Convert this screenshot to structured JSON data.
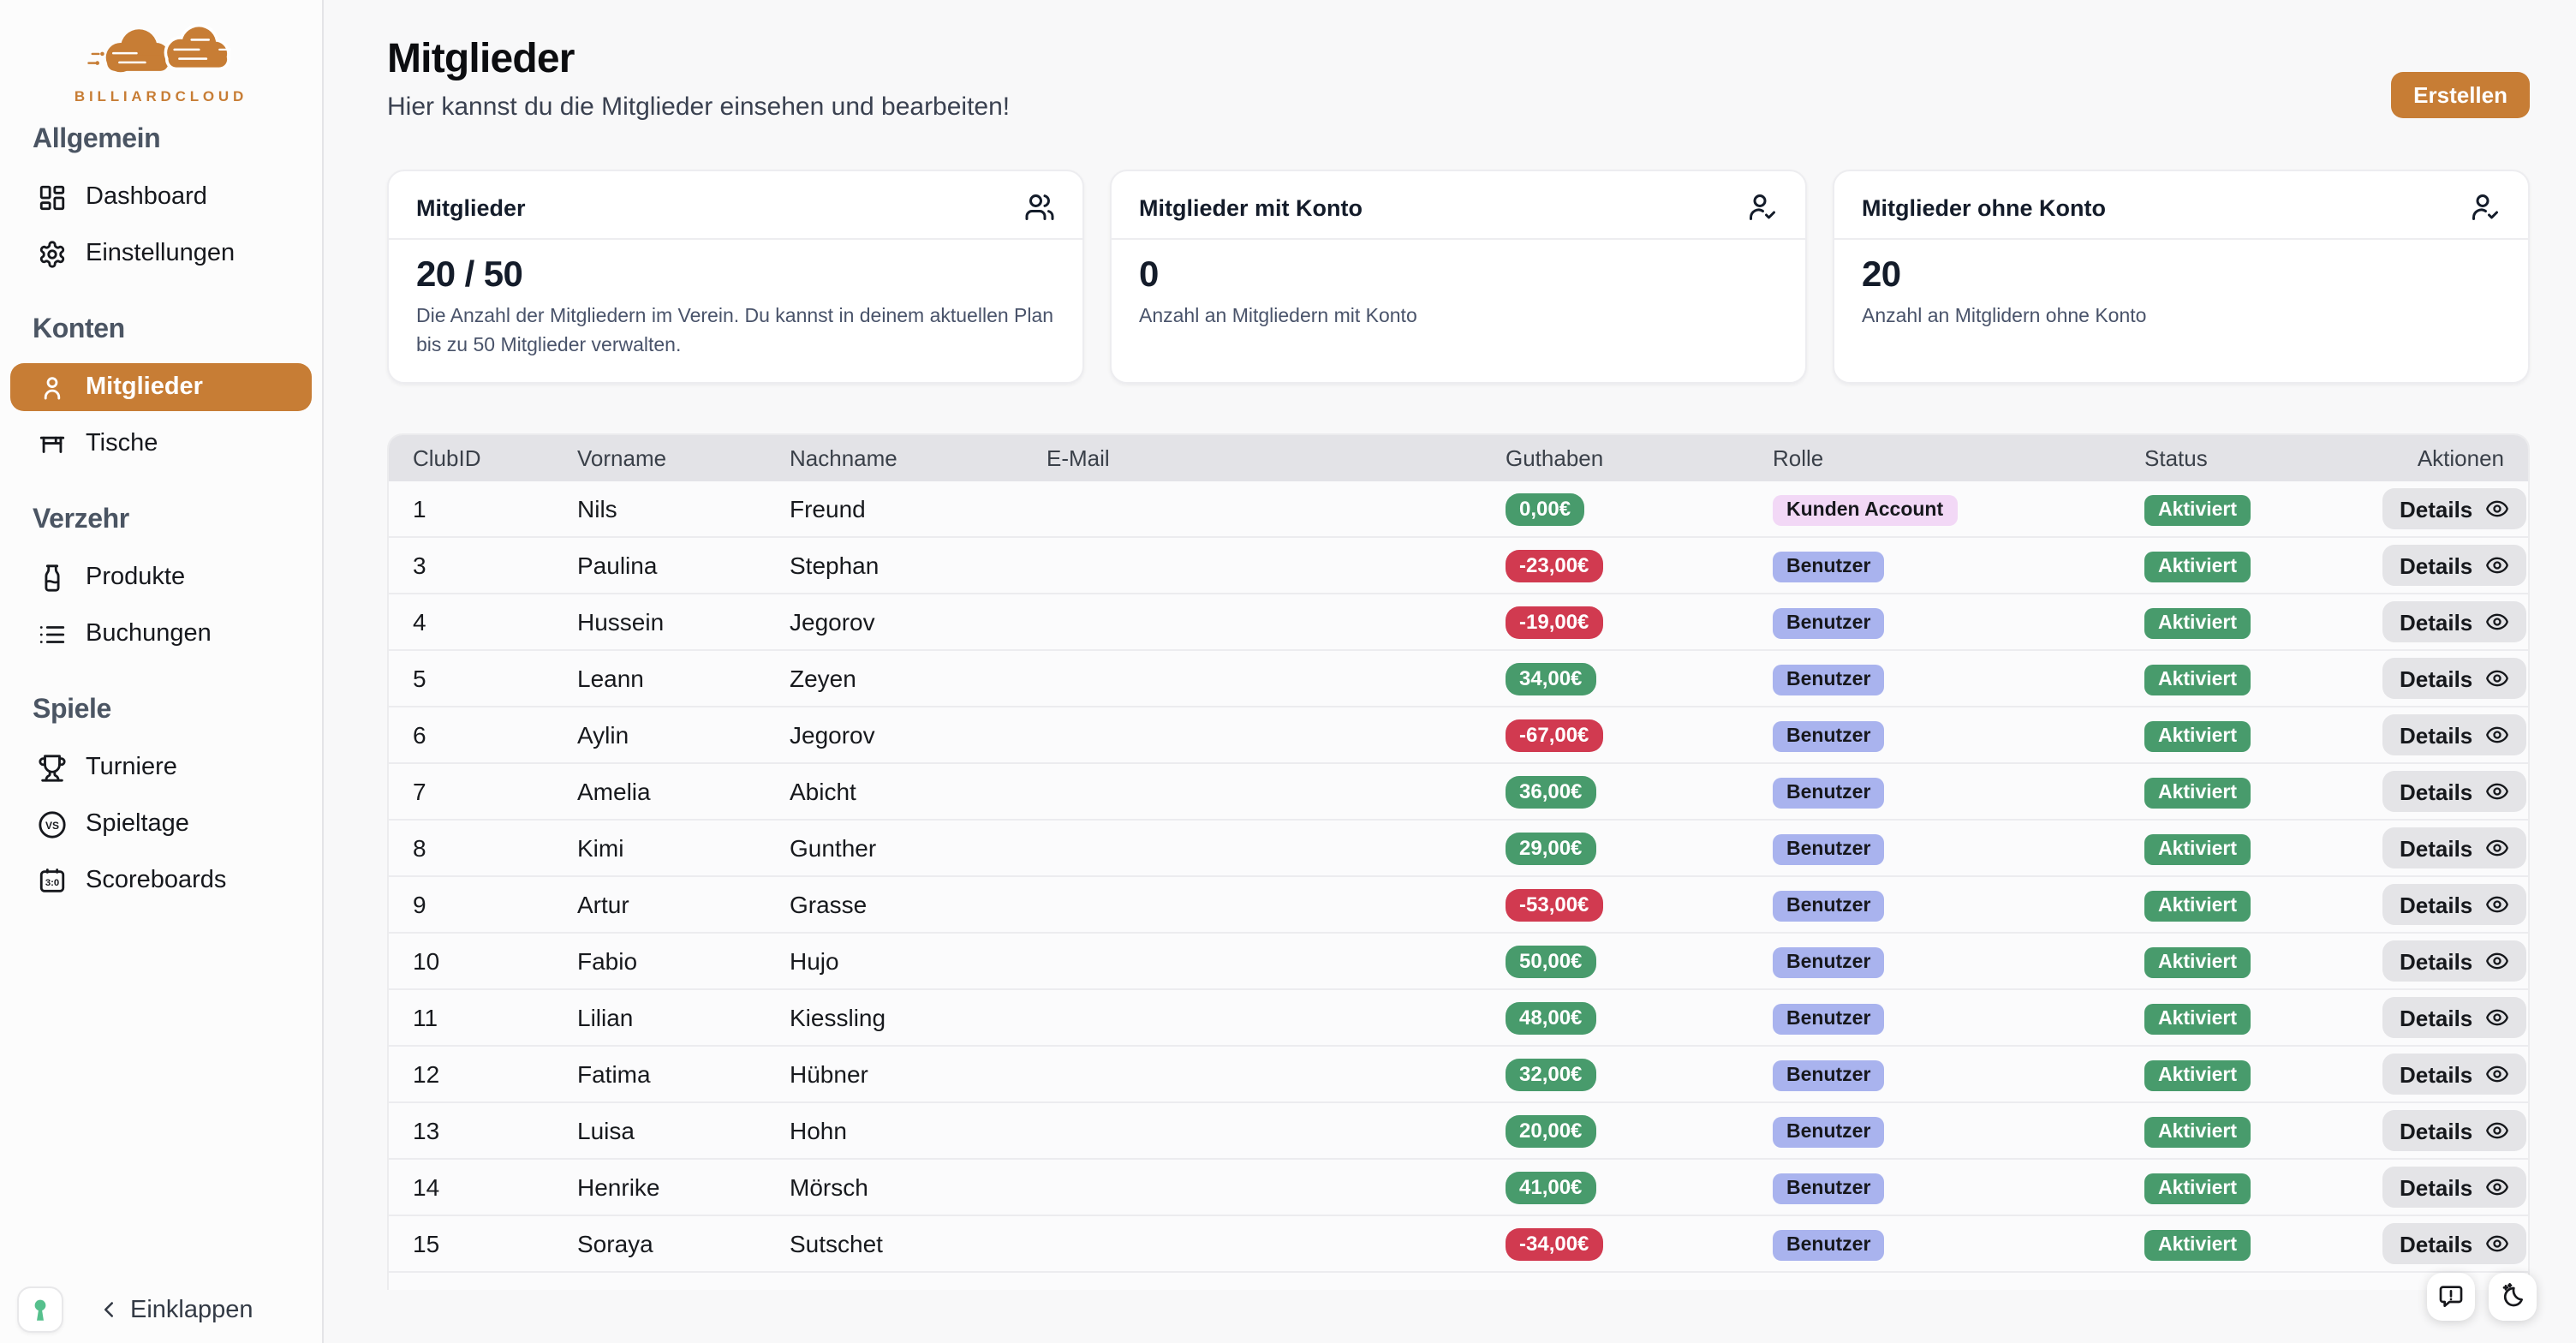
{
  "brand": {
    "name": "BILLIARDCLOUD"
  },
  "colors": {
    "accent": "#C77D35",
    "positive": "#489B6C",
    "negative": "#D13A50",
    "role_kunde": "#F2D8F6",
    "role_benutzer": "#A9B3EE",
    "status_active": "#489B6C"
  },
  "sidebar": {
    "sections": [
      {
        "label": "Allgemein",
        "items": [
          {
            "label": "Dashboard",
            "icon": "dashboard",
            "active": false
          },
          {
            "label": "Einstellungen",
            "icon": "gear",
            "active": false
          }
        ]
      },
      {
        "label": "Konten",
        "items": [
          {
            "label": "Mitglieder",
            "icon": "person",
            "active": true
          },
          {
            "label": "Tische",
            "icon": "table",
            "active": false
          }
        ]
      },
      {
        "label": "Verzehr",
        "items": [
          {
            "label": "Produkte",
            "icon": "bottle",
            "active": false
          },
          {
            "label": "Buchungen",
            "icon": "list",
            "active": false
          }
        ]
      },
      {
        "label": "Spiele",
        "items": [
          {
            "label": "Turniere",
            "icon": "trophy",
            "active": false
          },
          {
            "label": "Spieltage",
            "icon": "vs",
            "active": false
          },
          {
            "label": "Scoreboards",
            "icon": "scoreboard",
            "active": false
          }
        ]
      }
    ],
    "collapse_label": "Einklappen"
  },
  "header": {
    "title": "Mitglieder",
    "subtitle": "Hier kannst du die Mitglieder einsehen und bearbeiten!",
    "create_button": "Erstellen"
  },
  "stats": [
    {
      "title": "Mitglieder",
      "icon": "people-group",
      "value": "20 / 50",
      "description": "Die Anzahl der Mitgliedern im Verein. Du kannst in deinem aktuellen Plan bis zu 50 Mitglieder verwalten."
    },
    {
      "title": "Mitglieder mit Konto",
      "icon": "person-check",
      "value": "0",
      "description": "Anzahl an Mitgliedern mit Konto"
    },
    {
      "title": "Mitglieder ohne Konto",
      "icon": "person-check",
      "value": "20",
      "description": "Anzahl an Mitglidern ohne Konto"
    }
  ],
  "table": {
    "columns": [
      "ClubID",
      "Vorname",
      "Nachname",
      "E-Mail",
      "Guthaben",
      "Rolle",
      "Status",
      "Aktionen"
    ],
    "details_label": "Details",
    "rows": [
      {
        "club_id": "1",
        "vorname": "Nils",
        "nachname": "Freund",
        "email": "",
        "guthaben": "0,00€",
        "guthaben_state": "positive",
        "rolle": "Kunden Account",
        "rolle_type": "kunde",
        "status": "Aktiviert"
      },
      {
        "club_id": "3",
        "vorname": "Paulina",
        "nachname": "Stephan",
        "email": "",
        "guthaben": "-23,00€",
        "guthaben_state": "negative",
        "rolle": "Benutzer",
        "rolle_type": "benutzer",
        "status": "Aktiviert"
      },
      {
        "club_id": "4",
        "vorname": "Hussein",
        "nachname": "Jegorov",
        "email": "",
        "guthaben": "-19,00€",
        "guthaben_state": "negative",
        "rolle": "Benutzer",
        "rolle_type": "benutzer",
        "status": "Aktiviert"
      },
      {
        "club_id": "5",
        "vorname": "Leann",
        "nachname": "Zeyen",
        "email": "",
        "guthaben": "34,00€",
        "guthaben_state": "positive",
        "rolle": "Benutzer",
        "rolle_type": "benutzer",
        "status": "Aktiviert"
      },
      {
        "club_id": "6",
        "vorname": "Aylin",
        "nachname": "Jegorov",
        "email": "",
        "guthaben": "-67,00€",
        "guthaben_state": "negative",
        "rolle": "Benutzer",
        "rolle_type": "benutzer",
        "status": "Aktiviert"
      },
      {
        "club_id": "7",
        "vorname": "Amelia",
        "nachname": "Abicht",
        "email": "",
        "guthaben": "36,00€",
        "guthaben_state": "positive",
        "rolle": "Benutzer",
        "rolle_type": "benutzer",
        "status": "Aktiviert"
      },
      {
        "club_id": "8",
        "vorname": "Kimi",
        "nachname": "Gunther",
        "email": "",
        "guthaben": "29,00€",
        "guthaben_state": "positive",
        "rolle": "Benutzer",
        "rolle_type": "benutzer",
        "status": "Aktiviert"
      },
      {
        "club_id": "9",
        "vorname": "Artur",
        "nachname": "Grasse",
        "email": "",
        "guthaben": "-53,00€",
        "guthaben_state": "negative",
        "rolle": "Benutzer",
        "rolle_type": "benutzer",
        "status": "Aktiviert"
      },
      {
        "club_id": "10",
        "vorname": "Fabio",
        "nachname": "Hujo",
        "email": "",
        "guthaben": "50,00€",
        "guthaben_state": "positive",
        "rolle": "Benutzer",
        "rolle_type": "benutzer",
        "status": "Aktiviert"
      },
      {
        "club_id": "11",
        "vorname": "Lilian",
        "nachname": "Kiessling",
        "email": "",
        "guthaben": "48,00€",
        "guthaben_state": "positive",
        "rolle": "Benutzer",
        "rolle_type": "benutzer",
        "status": "Aktiviert"
      },
      {
        "club_id": "12",
        "vorname": "Fatima",
        "nachname": "Hübner",
        "email": "",
        "guthaben": "32,00€",
        "guthaben_state": "positive",
        "rolle": "Benutzer",
        "rolle_type": "benutzer",
        "status": "Aktiviert"
      },
      {
        "club_id": "13",
        "vorname": "Luisa",
        "nachname": "Hohn",
        "email": "",
        "guthaben": "20,00€",
        "guthaben_state": "positive",
        "rolle": "Benutzer",
        "rolle_type": "benutzer",
        "status": "Aktiviert"
      },
      {
        "club_id": "14",
        "vorname": "Henrike",
        "nachname": "Mörsch",
        "email": "",
        "guthaben": "41,00€",
        "guthaben_state": "positive",
        "rolle": "Benutzer",
        "rolle_type": "benutzer",
        "status": "Aktiviert"
      },
      {
        "club_id": "15",
        "vorname": "Soraya",
        "nachname": "Sutschet",
        "email": "",
        "guthaben": "-34,00€",
        "guthaben_state": "negative",
        "rolle": "Benutzer",
        "rolle_type": "benutzer",
        "status": "Aktiviert"
      }
    ]
  },
  "floating": {
    "buttons": [
      {
        "name": "feedback",
        "icon": "feedback-bubble"
      },
      {
        "name": "dark-mode",
        "icon": "moon-sparkles"
      }
    ]
  }
}
